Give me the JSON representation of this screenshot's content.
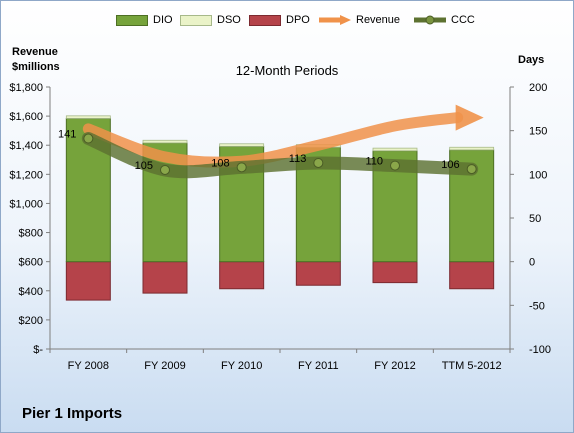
{
  "company": "Pier 1 Imports",
  "chart_data": {
    "type": "bar",
    "title": "12-Month Periods",
    "ylabel_left": "Revenue $millions",
    "ylabel_right": "Days",
    "categories": [
      "FY 2008",
      "FY 2009",
      "FY 2010",
      "FY 2011",
      "FY 2012",
      "TTM 5-2012"
    ],
    "left_axis": {
      "min": 0,
      "max": 1800,
      "step": 200,
      "ticks": [
        "$-",
        "$200",
        "$400",
        "$600",
        "$800",
        "$1,000",
        "$1,200",
        "$1,400",
        "$1,600",
        "$1,800"
      ]
    },
    "right_axis": {
      "min": -100,
      "max": 200,
      "step": 50,
      "ticks": [
        "-100",
        "-50",
        "0",
        "50",
        "100",
        "150",
        "200"
      ]
    },
    "legend_position": "top",
    "series": [
      {
        "name": "DIO",
        "axis": "right",
        "kind": "stacked-bar",
        "color": "#76a33b",
        "values": [
          164,
          136,
          132,
          131,
          127,
          128
        ]
      },
      {
        "name": "DSO",
        "axis": "right",
        "kind": "stacked-bar",
        "color": "#eaf3c8",
        "values": [
          3,
          3,
          3,
          3,
          3,
          3
        ]
      },
      {
        "name": "DPO",
        "axis": "right",
        "kind": "negative-bar",
        "color": "#b5434a",
        "values": [
          -44,
          -36,
          -31,
          -27,
          -24,
          -31
        ]
      },
      {
        "name": "Revenue",
        "axis": "left",
        "kind": "line-arrow",
        "color": "#f0924a",
        "values": [
          1512,
          1320,
          1290,
          1400,
          1533,
          1590
        ]
      },
      {
        "name": "CCC",
        "axis": "right",
        "kind": "line",
        "color": "#5d7231",
        "values": [
          141,
          105,
          108,
          113,
          110,
          106
        ]
      }
    ],
    "data_labels": [
      "141",
      "105",
      "108",
      "113",
      "110",
      "106"
    ],
    "grid": false
  }
}
